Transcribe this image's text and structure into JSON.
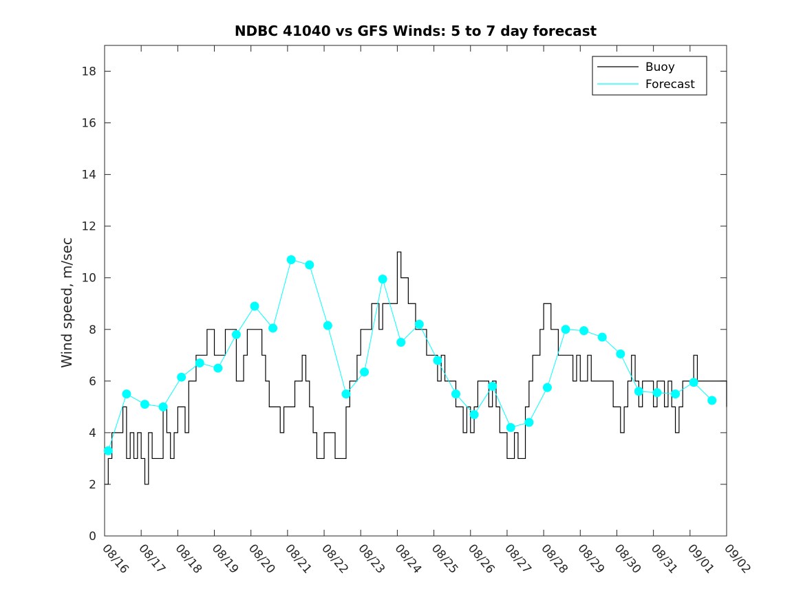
{
  "chart_data": {
    "type": "line",
    "title": "NDBC 41040 vs GFS Winds: 5 to 7 day forecast",
    "xlabel": "",
    "ylabel": "Wind speed, m/sec",
    "xlim": [
      0,
      17
    ],
    "ylim": [
      0,
      19
    ],
    "grid": false,
    "legend_position": "top-right",
    "x_tick_labels": [
      "08/16",
      "08/17",
      "08/18",
      "08/19",
      "08/20",
      "08/21",
      "08/22",
      "08/23",
      "08/24",
      "08/25",
      "08/26",
      "08/27",
      "08/28",
      "08/29",
      "08/30",
      "08/31",
      "09/01",
      "09/02"
    ],
    "y_ticks": [
      0,
      2,
      4,
      6,
      8,
      10,
      12,
      14,
      16,
      18
    ],
    "colors": {
      "buoy": "#000000",
      "forecast": "#00FFFF"
    },
    "legend": [
      {
        "name": "Buoy",
        "color": "#000000"
      },
      {
        "name": "Forecast",
        "color": "#00FFFF"
      }
    ],
    "series": [
      {
        "name": "Buoy",
        "x": [
          0,
          0.1,
          0.2,
          0.3,
          0.4,
          0.5,
          0.6,
          0.7,
          0.8,
          0.9,
          1.0,
          1.1,
          1.2,
          1.3,
          1.4,
          1.5,
          1.6,
          1.7,
          1.8,
          1.9,
          2.0,
          2.1,
          2.2,
          2.3,
          2.4,
          2.5,
          2.6,
          2.7,
          2.8,
          2.9,
          3.0,
          3.1,
          3.2,
          3.3,
          3.4,
          3.5,
          3.6,
          3.7,
          3.8,
          3.9,
          4.0,
          4.1,
          4.2,
          4.3,
          4.4,
          4.5,
          4.6,
          4.7,
          4.8,
          4.9,
          5.0,
          5.1,
          5.2,
          5.3,
          5.4,
          5.5,
          5.6,
          5.7,
          5.8,
          5.9,
          6.0,
          6.1,
          6.2,
          6.3,
          6.4,
          6.5,
          6.6,
          6.7,
          6.8,
          6.9,
          7.0,
          7.1,
          7.2,
          7.3,
          7.4,
          7.5,
          7.6,
          7.7,
          7.8,
          7.9,
          8.0,
          8.1,
          8.2,
          8.3,
          8.4,
          8.5,
          8.6,
          8.7,
          8.8,
          8.9,
          9.0,
          9.1,
          9.2,
          9.3,
          9.4,
          9.5,
          9.6,
          9.7,
          9.8,
          9.9,
          10.0,
          10.1,
          10.2,
          10.3,
          10.4,
          10.5,
          10.6,
          10.7,
          10.8,
          10.9,
          11.0,
          11.1,
          11.2,
          11.3,
          11.4,
          11.5,
          11.6,
          11.7,
          11.8,
          11.9,
          12.0,
          12.1,
          12.2,
          12.3,
          12.4,
          12.5,
          12.6,
          12.7,
          12.8,
          12.9,
          13.0,
          13.1,
          13.2,
          13.3,
          13.4,
          13.5,
          13.6,
          13.7,
          13.8,
          13.9,
          14.0,
          14.1,
          14.2,
          14.3,
          14.4,
          14.5,
          14.6,
          14.7,
          14.8,
          14.9,
          15.0,
          15.1,
          15.2,
          15.3,
          15.4,
          15.5,
          15.6,
          15.7,
          15.8,
          15.9,
          16.0,
          16.1,
          16.2,
          16.3,
          16.4,
          16.5,
          16.6,
          16.7,
          16.8,
          16.9,
          17.0
        ],
        "values": [
          2,
          3,
          4,
          4,
          4,
          5,
          3,
          4,
          3,
          4,
          3,
          2,
          4,
          3,
          3,
          3,
          5,
          4,
          3,
          4,
          5,
          5,
          4,
          6,
          6,
          7,
          7,
          7,
          8,
          8,
          7,
          7,
          7,
          8,
          8,
          8,
          6,
          6,
          7,
          8,
          8,
          8,
          8,
          7,
          6,
          5,
          5,
          5,
          4,
          5,
          5,
          5,
          6,
          6,
          7,
          6,
          5,
          4,
          3,
          3,
          4,
          4,
          4,
          3,
          3,
          3,
          5,
          6,
          6,
          7,
          8,
          8,
          8,
          9,
          9,
          8,
          9,
          9,
          9,
          9,
          11,
          10,
          10,
          9,
          9,
          8,
          8,
          8,
          7,
          7,
          7,
          6,
          7,
          6,
          6,
          6,
          5,
          5,
          4,
          5,
          4,
          5,
          6,
          6,
          6,
          5,
          6,
          5,
          4,
          4,
          3,
          3,
          4,
          3,
          3,
          5,
          6,
          7,
          7,
          8,
          9,
          9,
          8,
          8,
          7,
          7,
          7,
          7,
          6,
          7,
          6,
          6,
          7,
          6,
          6,
          6,
          6,
          6,
          6,
          5,
          5,
          4,
          5,
          6,
          7,
          6,
          5,
          6,
          6,
          6,
          5,
          6,
          6,
          5,
          6,
          5,
          4,
          5,
          6,
          6,
          6,
          7,
          6,
          6,
          6,
          6,
          6,
          6,
          6,
          6,
          5
        ]
      },
      {
        "name": "Forecast",
        "x": [
          0.1,
          0.6,
          1.1,
          1.6,
          2.1,
          2.6,
          3.1,
          3.6,
          4.1,
          4.6,
          5.1,
          5.6,
          6.1,
          6.6,
          7.1,
          7.6,
          8.1,
          8.6,
          9.1,
          9.6,
          10.1,
          10.6,
          11.1,
          11.6,
          12.1,
          12.6,
          13.1,
          13.6,
          14.1,
          14.6,
          15.1,
          15.6,
          16.1,
          16.6
        ],
        "values": [
          3.3,
          5.5,
          5.1,
          5.0,
          6.15,
          6.7,
          6.5,
          7.8,
          8.9,
          8.05,
          10.7,
          10.5,
          8.15,
          5.5,
          6.35,
          9.95,
          7.5,
          8.2,
          6.8,
          5.5,
          4.7,
          5.8,
          4.2,
          4.4,
          5.75,
          8.0,
          7.95,
          7.7,
          7.05,
          5.6,
          5.55,
          5.5,
          5.95,
          5.25
        ]
      }
    ]
  }
}
